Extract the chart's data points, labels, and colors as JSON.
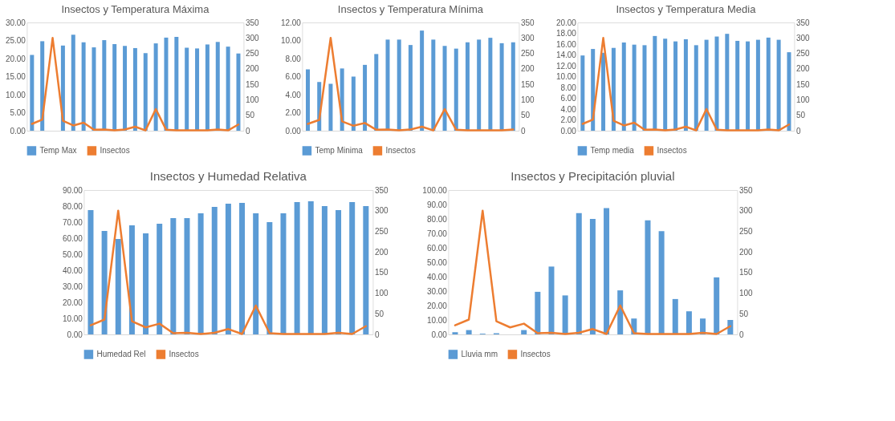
{
  "chart_data": [
    {
      "type": "bar",
      "title": "Insectos y Temperatura Máxima",
      "categories": [
        null,
        null,
        null,
        null,
        null,
        null,
        null,
        null,
        null,
        null,
        null,
        null,
        null,
        null,
        null,
        null,
        null,
        null,
        null,
        null,
        null
      ],
      "legend": "bottom",
      "series": [
        {
          "name": "Temp Max",
          "color": "#5b9bd5",
          "values": [
            21.0,
            24.8,
            null,
            23.6,
            26.6,
            24.5,
            23.1,
            25.1,
            24.0,
            23.5,
            22.9,
            21.5,
            24.2,
            25.8,
            26.0,
            23.0,
            22.8,
            23.9,
            24.6,
            23.3,
            21.4
          ]
        },
        {
          "name": "Insectos",
          "type": "line",
          "axis": "y2",
          "color": "#ed7d31",
          "values": [
            22,
            36,
            300,
            32,
            17,
            26,
            3,
            4,
            1,
            4,
            13,
            1,
            70,
            3,
            1,
            1,
            1,
            1,
            4,
            1,
            20
          ]
        }
      ],
      "ylim": [
        0,
        30
      ],
      "yticks": [
        {
          "value": 0,
          "label": "0.00"
        },
        {
          "value": 5,
          "label": "5.00"
        },
        {
          "value": 10,
          "label": "10.00"
        },
        {
          "value": 15,
          "label": "15.00"
        },
        {
          "value": 20,
          "label": "20.00"
        },
        {
          "value": 25,
          "label": "25.00"
        },
        {
          "value": 30,
          "label": "30.00"
        }
      ],
      "y2lim": [
        0,
        350
      ],
      "y2ticks": [
        0,
        50,
        100,
        150,
        200,
        250,
        300,
        350
      ]
    },
    {
      "type": "bar",
      "title": "Insectos y Temperatura Mínima",
      "categories": [
        null,
        null,
        null,
        null,
        null,
        null,
        null,
        null,
        null,
        null,
        null,
        null,
        null,
        null,
        null,
        null,
        null,
        null,
        null
      ],
      "legend": "bottom",
      "series": [
        {
          "name": "Temp Minima",
          "color": "#5b9bd5",
          "values": [
            6.8,
            5.4,
            5.2,
            6.9,
            6.0,
            7.3,
            8.5,
            10.1,
            10.1,
            9.5,
            11.1,
            10.1,
            9.4,
            9.1,
            9.8,
            10.1,
            10.3,
            9.7,
            9.8
          ]
        },
        {
          "name": "Insectos",
          "type": "line",
          "axis": "y2",
          "color": "#ed7d31",
          "values": [
            22,
            35,
            300,
            30,
            16,
            25,
            3,
            4,
            1,
            4,
            13,
            1,
            70,
            3,
            1,
            1,
            1,
            1,
            4
          ]
        }
      ],
      "ylim": [
        0,
        12
      ],
      "yticks": [
        {
          "value": 0,
          "label": "0.00"
        },
        {
          "value": 2,
          "label": "2.00"
        },
        {
          "value": 4,
          "label": "4.00"
        },
        {
          "value": 6,
          "label": "6.00"
        },
        {
          "value": 8,
          "label": "8.00"
        },
        {
          "value": 10,
          "label": "10.00"
        },
        {
          "value": 12,
          "label": "12.00"
        }
      ],
      "y2lim": [
        0,
        350
      ],
      "y2ticks": [
        0,
        50,
        100,
        150,
        200,
        250,
        300,
        350
      ]
    },
    {
      "type": "bar",
      "title": "Insectos y Temperatura Media",
      "categories": [
        null,
        null,
        null,
        null,
        null,
        null,
        null,
        null,
        null,
        null,
        null,
        null,
        null,
        null,
        null,
        null,
        null,
        null,
        null,
        null,
        null
      ],
      "legend": "bottom",
      "series": [
        {
          "name": "Temp media",
          "color": "#5b9bd5",
          "values": [
            13.9,
            15.1,
            14.4,
            15.3,
            16.3,
            15.9,
            15.8,
            17.5,
            17.0,
            16.5,
            16.9,
            15.8,
            16.8,
            17.4,
            17.9,
            16.6,
            16.5,
            16.8,
            17.2,
            16.8,
            14.5
          ]
        },
        {
          "name": "Insectos",
          "type": "line",
          "axis": "y2",
          "color": "#ed7d31",
          "values": [
            22,
            36,
            300,
            32,
            17,
            26,
            3,
            4,
            1,
            4,
            13,
            1,
            70,
            3,
            1,
            1,
            1,
            1,
            4,
            1,
            20
          ]
        }
      ],
      "ylim": [
        0,
        20
      ],
      "yticks": [
        {
          "value": 0,
          "label": "0.00"
        },
        {
          "value": 2,
          "label": "2.00"
        },
        {
          "value": 4,
          "label": "4.00"
        },
        {
          "value": 6,
          "label": "6.00"
        },
        {
          "value": 8,
          "label": "8.00"
        },
        {
          "value": 10,
          "label": "10.00"
        },
        {
          "value": 12,
          "label": "12.00"
        },
        {
          "value": 14,
          "label": "14.00"
        },
        {
          "value": 16,
          "label": "16.00"
        },
        {
          "value": 18,
          "label": "18.00"
        },
        {
          "value": 20,
          "label": "20.00"
        }
      ],
      "y2lim": [
        0,
        350
      ],
      "y2ticks": [
        0,
        50,
        100,
        150,
        200,
        250,
        300,
        350
      ]
    },
    {
      "type": "bar",
      "title": "Insectos y Humedad Relativa",
      "categories": [
        null,
        null,
        null,
        null,
        null,
        null,
        null,
        null,
        null,
        null,
        null,
        null,
        null,
        null,
        null,
        null,
        null,
        null,
        null,
        null,
        null
      ],
      "legend": "bottom",
      "series": [
        {
          "name": "Humedad Rel",
          "color": "#5b9bd5",
          "values": [
            77.5,
            64.5,
            59.5,
            68.0,
            63.0,
            69.0,
            72.5,
            72.5,
            75.5,
            79.5,
            81.5,
            82.0,
            75.5,
            70.0,
            75.5,
            82.5,
            83.0,
            80.0,
            77.5,
            82.5,
            80.0
          ]
        },
        {
          "name": "Insectos",
          "type": "line",
          "axis": "y2",
          "color": "#ed7d31",
          "values": [
            22,
            36,
            300,
            32,
            17,
            26,
            3,
            4,
            1,
            4,
            13,
            1,
            70,
            3,
            1,
            1,
            1,
            1,
            4,
            1,
            20
          ]
        }
      ],
      "ylim": [
        0,
        90
      ],
      "yticks": [
        {
          "value": 0,
          "label": "0.00"
        },
        {
          "value": 10,
          "label": "10.00"
        },
        {
          "value": 20,
          "label": "20.00"
        },
        {
          "value": 30,
          "label": "30.00"
        },
        {
          "value": 40,
          "label": "40.00"
        },
        {
          "value": 50,
          "label": "50.00"
        },
        {
          "value": 60,
          "label": "60.00"
        },
        {
          "value": 70,
          "label": "70.00"
        },
        {
          "value": 80,
          "label": "80.00"
        },
        {
          "value": 90,
          "label": "90.00"
        }
      ],
      "y2lim": [
        0,
        350
      ],
      "y2ticks": [
        0,
        50,
        100,
        150,
        200,
        250,
        300,
        350
      ]
    },
    {
      "type": "bar",
      "title": "Insectos y Precipitación pluvial",
      "categories": [
        null,
        null,
        null,
        null,
        null,
        null,
        null,
        null,
        null,
        null,
        null,
        null,
        null,
        null,
        null,
        null,
        null,
        null,
        null,
        null,
        null
      ],
      "legend": "bottom",
      "series": [
        {
          "name": "Lluvia mm",
          "color": "#5b9bd5",
          "values": [
            1.5,
            3.0,
            0.5,
            0.8,
            0,
            3.0,
            29.5,
            47.0,
            27.0,
            84.0,
            80.0,
            87.5,
            30.5,
            11.0,
            79.0,
            71.5,
            24.5,
            16.0,
            11.0,
            39.5,
            10.0
          ]
        },
        {
          "name": "Insectos",
          "type": "line",
          "axis": "y2",
          "color": "#ed7d31",
          "values": [
            22,
            36,
            300,
            32,
            17,
            26,
            3,
            4,
            1,
            4,
            13,
            1,
            70,
            3,
            1,
            1,
            1,
            1,
            4,
            1,
            20
          ]
        }
      ],
      "ylim": [
        0,
        100
      ],
      "yticks": [
        {
          "value": 0,
          "label": "0.00"
        },
        {
          "value": 10,
          "label": "10.00"
        },
        {
          "value": 20,
          "label": "20.00"
        },
        {
          "value": 30,
          "label": "30.00"
        },
        {
          "value": 40,
          "label": "40.00"
        },
        {
          "value": 50,
          "label": "50.00"
        },
        {
          "value": 60,
          "label": "60.00"
        },
        {
          "value": 70,
          "label": "70.00"
        },
        {
          "value": 80,
          "label": "80.00"
        },
        {
          "value": 90,
          "label": "90.00"
        },
        {
          "value": 100,
          "label": "100.00"
        }
      ],
      "y2lim": [
        0,
        350
      ],
      "y2ticks": [
        0,
        50,
        100,
        150,
        200,
        250,
        300,
        350
      ]
    }
  ]
}
